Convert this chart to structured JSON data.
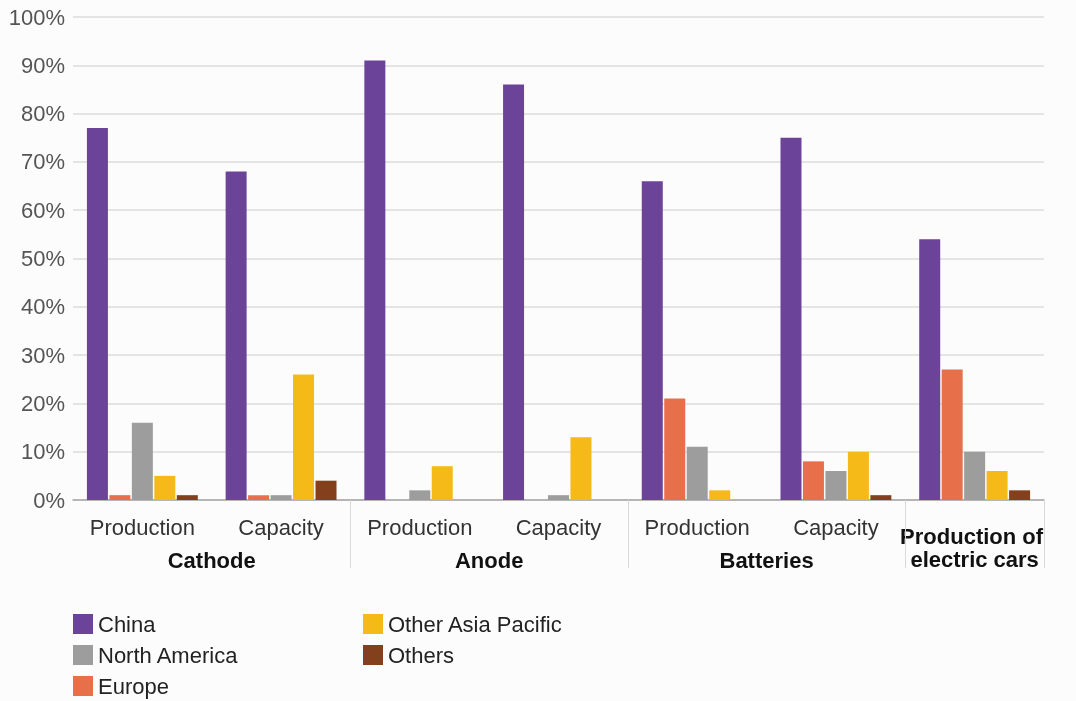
{
  "chart_data": {
    "type": "bar",
    "categories": [
      "Production",
      "Capacity",
      "Production",
      "Capacity",
      "Production",
      "Capacity",
      null
    ],
    "annotations": [
      "Cathode",
      "Anode",
      "Batteries",
      "Production of electric cars"
    ],
    "series": [
      {
        "name": "China",
        "color": "#6b4499",
        "values": [
          77,
          68,
          91,
          86,
          66,
          75,
          54
        ]
      },
      {
        "name": "Europe",
        "color": "#e7704a",
        "values": [
          1,
          1,
          0,
          0,
          21,
          8,
          27
        ]
      },
      {
        "name": "North America",
        "color": "#9d9d9d",
        "values": [
          16,
          1,
          2,
          1,
          11,
          6,
          10
        ]
      },
      {
        "name": "Other Asia Pacific",
        "color": "#f5ba17",
        "values": [
          5,
          26,
          7,
          13,
          2,
          10,
          6
        ]
      },
      {
        "name": "Others",
        "color": "#843f1c",
        "values": [
          1,
          4,
          0,
          0,
          0,
          1,
          2
        ]
      }
    ],
    "ylim": [
      0,
      100
    ],
    "yticks": [
      {
        "value": 0,
        "label": "0%"
      },
      {
        "value": 10,
        "label": "10%"
      },
      {
        "value": 20,
        "label": "20%"
      },
      {
        "value": 30,
        "label": "30%"
      },
      {
        "value": 40,
        "label": "40%"
      },
      {
        "value": 50,
        "label": "50%"
      },
      {
        "value": 60,
        "label": "60%"
      },
      {
        "value": 70,
        "label": "70%"
      },
      {
        "value": 80,
        "label": "80%"
      },
      {
        "value": 90,
        "label": "90%"
      },
      {
        "value": 100,
        "label": "100%"
      }
    ],
    "grid": "y",
    "legend": "bottom"
  }
}
